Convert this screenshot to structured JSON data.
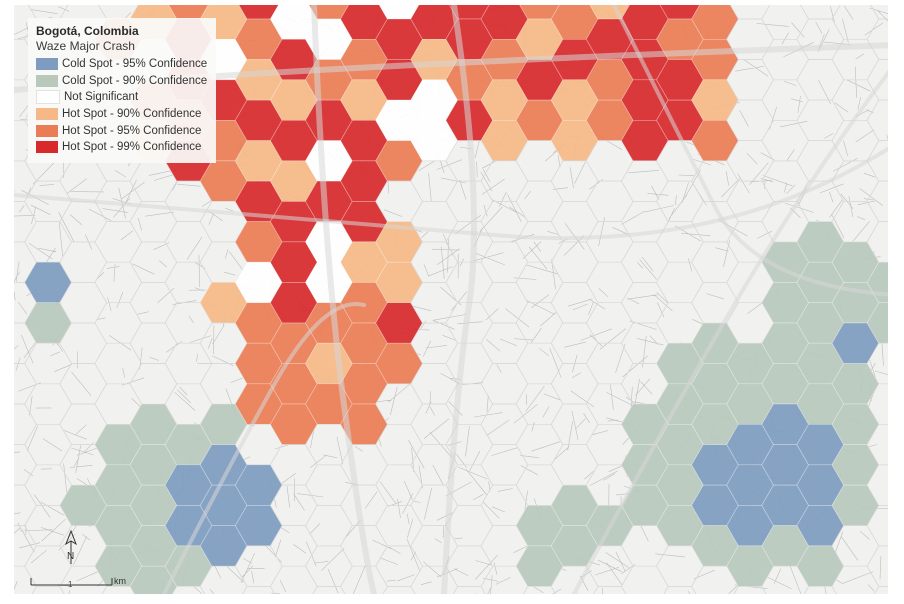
{
  "map": {
    "legend": {
      "title": "Bogotá, Colombia",
      "subtitle": "Waze Major Crash",
      "items": [
        {
          "label": "Cold Spot - 95% Confidence",
          "color": "#7e9cc0"
        },
        {
          "label": "Cold Spot - 90% Confidence",
          "color": "#b8c9bc"
        },
        {
          "label": "Not Significant",
          "color": "#ffffff"
        },
        {
          "label": "Hot Spot - 90% Confidence",
          "color": "#f6b886"
        },
        {
          "label": "Hot Spot - 95% Confidence",
          "color": "#ea7d55"
        },
        {
          "label": "Hot Spot - 99% Confidence",
          "color": "#d8292b"
        }
      ]
    },
    "scale": {
      "tick_label": "1",
      "unit": "km"
    },
    "north": {
      "label": "N"
    },
    "colors": {
      "background": "#f1f1f0",
      "street": "#bdbdbd",
      "major_road": "#d7d7d7",
      "hex_outline": "#d9d9d9"
    }
  }
}
